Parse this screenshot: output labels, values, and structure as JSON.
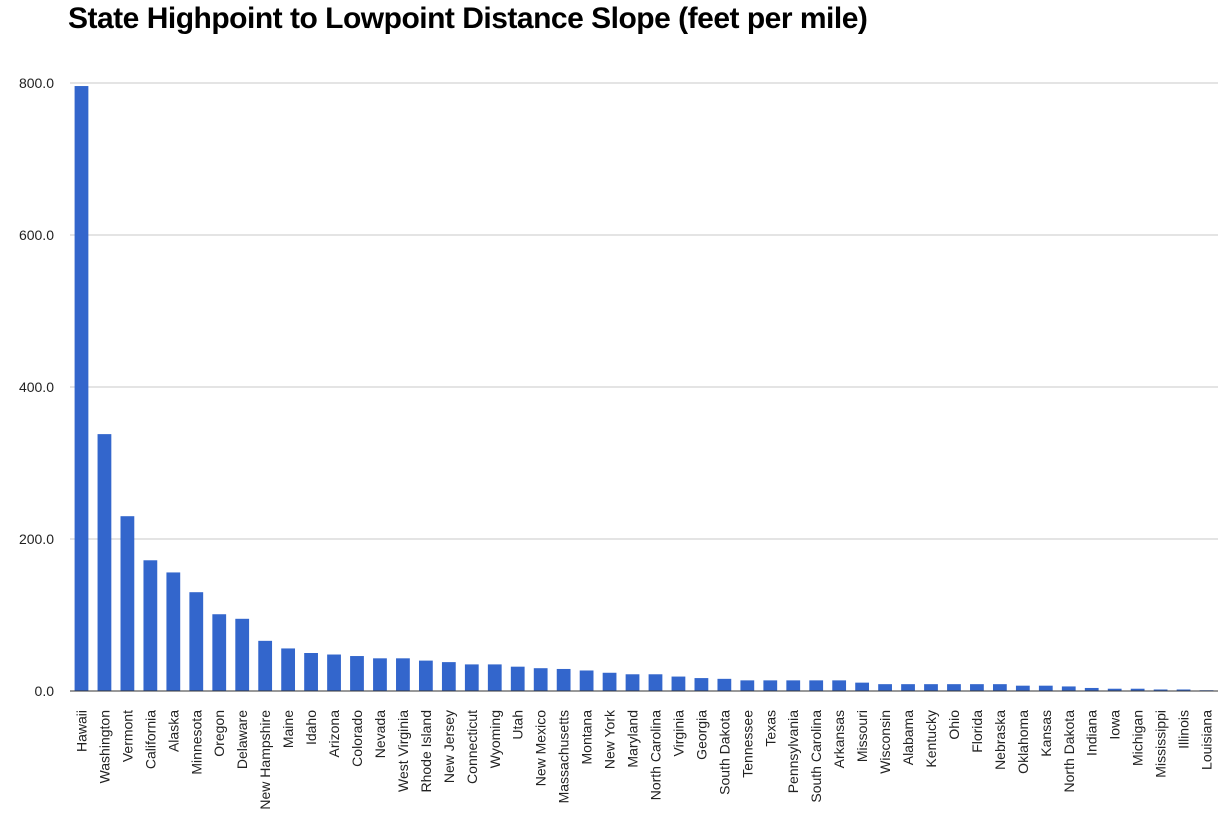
{
  "chart_data": {
    "type": "bar",
    "title": "State Highpoint to Lowpoint Distance Slope (feet per mile)",
    "xlabel": "",
    "ylabel": "",
    "ylim": [
      0,
      800
    ],
    "yticks": [
      "0.0",
      "200.0",
      "400.0",
      "600.0",
      "800.0"
    ],
    "ytick_values": [
      0,
      200,
      400,
      600,
      800
    ],
    "grid": true,
    "legend": "none",
    "bar_color": "#3366cc",
    "categories": [
      "Hawaii",
      "Washington",
      "Vermont",
      "California",
      "Alaska",
      "Minnesota",
      "Oregon",
      "Delaware",
      "New Hampshire",
      "Maine",
      "Idaho",
      "Arizona",
      "Colorado",
      "Nevada",
      "West Virginia",
      "Rhode Island",
      "New Jersey",
      "Connecticut",
      "Wyoming",
      "Utah",
      "New Mexico",
      "Massachusetts",
      "Montana",
      "New York",
      "Maryland",
      "North Carolina",
      "Virginia",
      "Georgia",
      "South Dakota",
      "Tennessee",
      "Texas",
      "Pennsylvania",
      "South Carolina",
      "Arkansas",
      "Missouri",
      "Wisconsin",
      "Alabama",
      "Kentucky",
      "Ohio",
      "Florida",
      "Nebraska",
      "Oklahoma",
      "Kansas",
      "North Dakota",
      "Indiana",
      "Iowa",
      "Michigan",
      "Mississippi",
      "Illinois",
      "Louisiana"
    ],
    "values": [
      796,
      338,
      230,
      172,
      156,
      130,
      101,
      95,
      66,
      56,
      50,
      48,
      46,
      43,
      43,
      40,
      38,
      35,
      35,
      32,
      30,
      29,
      27,
      24,
      22,
      22,
      19,
      17,
      16,
      14,
      14,
      14,
      14,
      14,
      11,
      9,
      9,
      9,
      9,
      9,
      9,
      7,
      7,
      6,
      4,
      3,
      3,
      2,
      2,
      1
    ]
  }
}
